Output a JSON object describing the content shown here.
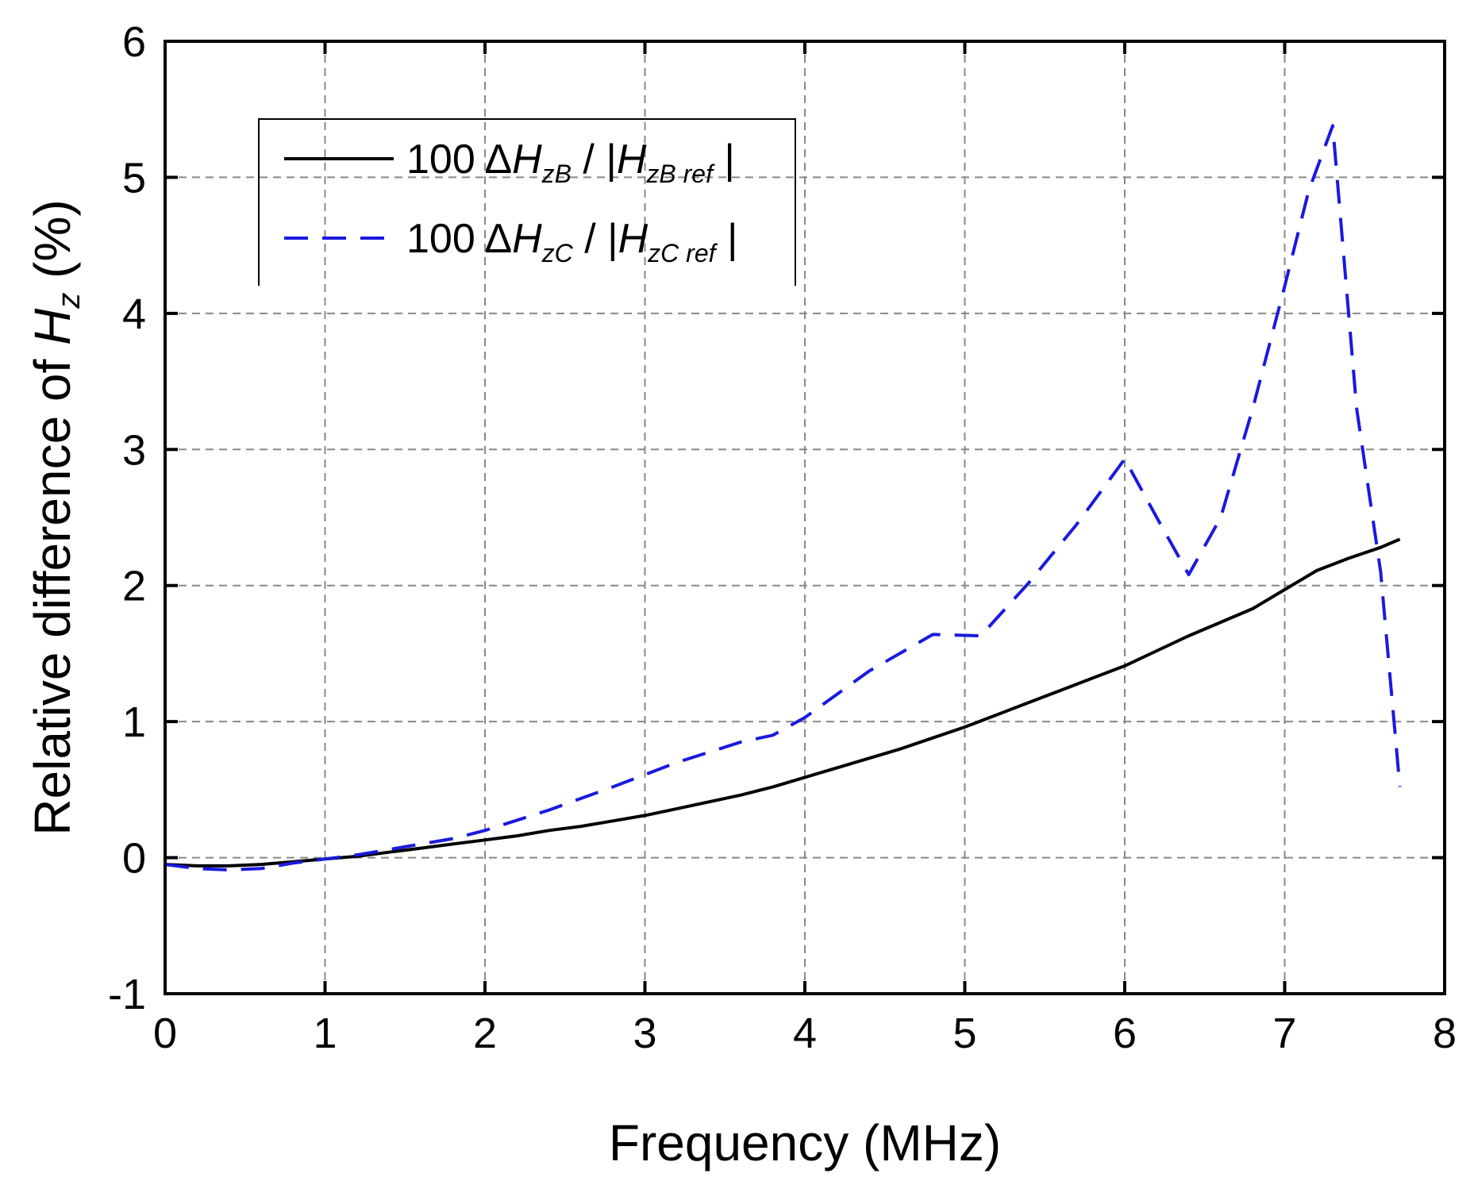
{
  "chart_data": {
    "type": "line",
    "title": "",
    "xlabel": "Frequency (MHz)",
    "ylabel": {
      "prefix": "Relative difference of ",
      "var": "H",
      "sub": "z",
      "suffix": " (%)"
    },
    "xlim": [
      0,
      8
    ],
    "ylim": [
      -1,
      6
    ],
    "xticks": [
      0,
      1,
      2,
      3,
      4,
      5,
      6,
      7,
      8
    ],
    "yticks": [
      -1,
      0,
      1,
      2,
      3,
      4,
      5,
      6
    ],
    "grid": true,
    "legend_position": "top-left",
    "series": [
      {
        "name": "100 ΔHzB / |HzB ref|",
        "legend": {
          "pre": "100 Δ",
          "var": "H",
          "sub": "zB",
          "mid": " / |",
          "var2": "H",
          "sub2": "zB ref",
          "post": " |"
        },
        "color": "#000000",
        "style": "solid",
        "x": [
          0,
          0.2,
          0.4,
          0.6,
          0.8,
          1.0,
          1.2,
          1.4,
          1.6,
          1.8,
          2.0,
          2.2,
          2.4,
          2.6,
          2.8,
          3.0,
          3.2,
          3.4,
          3.6,
          3.8,
          4.0,
          4.2,
          4.4,
          4.6,
          4.8,
          5.0,
          5.2,
          5.4,
          5.6,
          5.8,
          6.0,
          6.2,
          6.4,
          6.6,
          6.8,
          7.0,
          7.2,
          7.4,
          7.6,
          7.72
        ],
        "y": [
          -0.05,
          -0.06,
          -0.06,
          -0.05,
          -0.03,
          -0.01,
          0.01,
          0.04,
          0.07,
          0.1,
          0.13,
          0.16,
          0.2,
          0.23,
          0.27,
          0.31,
          0.36,
          0.41,
          0.46,
          0.52,
          0.59,
          0.66,
          0.73,
          0.8,
          0.88,
          0.96,
          1.05,
          1.14,
          1.23,
          1.32,
          1.41,
          1.52,
          1.63,
          1.73,
          1.83,
          1.97,
          2.11,
          2.2,
          2.28,
          2.34
        ]
      },
      {
        "name": "100 ΔHzC / |HzC ref|",
        "legend": {
          "pre": "100 Δ",
          "var": "H",
          "sub": "zC",
          "mid": " / |",
          "var2": "H",
          "sub2": "zC ref",
          "post": " |"
        },
        "color": "#1a1adf",
        "style": "dashed",
        "x": [
          0,
          0.2,
          0.4,
          0.6,
          0.8,
          1.0,
          1.2,
          1.4,
          1.6,
          1.8,
          2.0,
          2.4,
          2.8,
          3.2,
          3.6,
          3.8,
          4.0,
          4.4,
          4.8,
          5.1,
          5.4,
          5.7,
          6.0,
          6.2,
          6.4,
          6.6,
          6.8,
          7.0,
          7.15,
          7.3,
          7.45,
          7.6,
          7.72
        ],
        "y": [
          -0.05,
          -0.08,
          -0.09,
          -0.08,
          -0.04,
          -0.01,
          0.02,
          0.06,
          0.1,
          0.14,
          0.2,
          0.35,
          0.52,
          0.7,
          0.85,
          0.9,
          1.03,
          1.37,
          1.64,
          1.63,
          2.02,
          2.45,
          2.93,
          2.5,
          2.08,
          2.5,
          3.3,
          4.2,
          4.9,
          5.38,
          3.3,
          2.1,
          0.52
        ]
      }
    ]
  }
}
